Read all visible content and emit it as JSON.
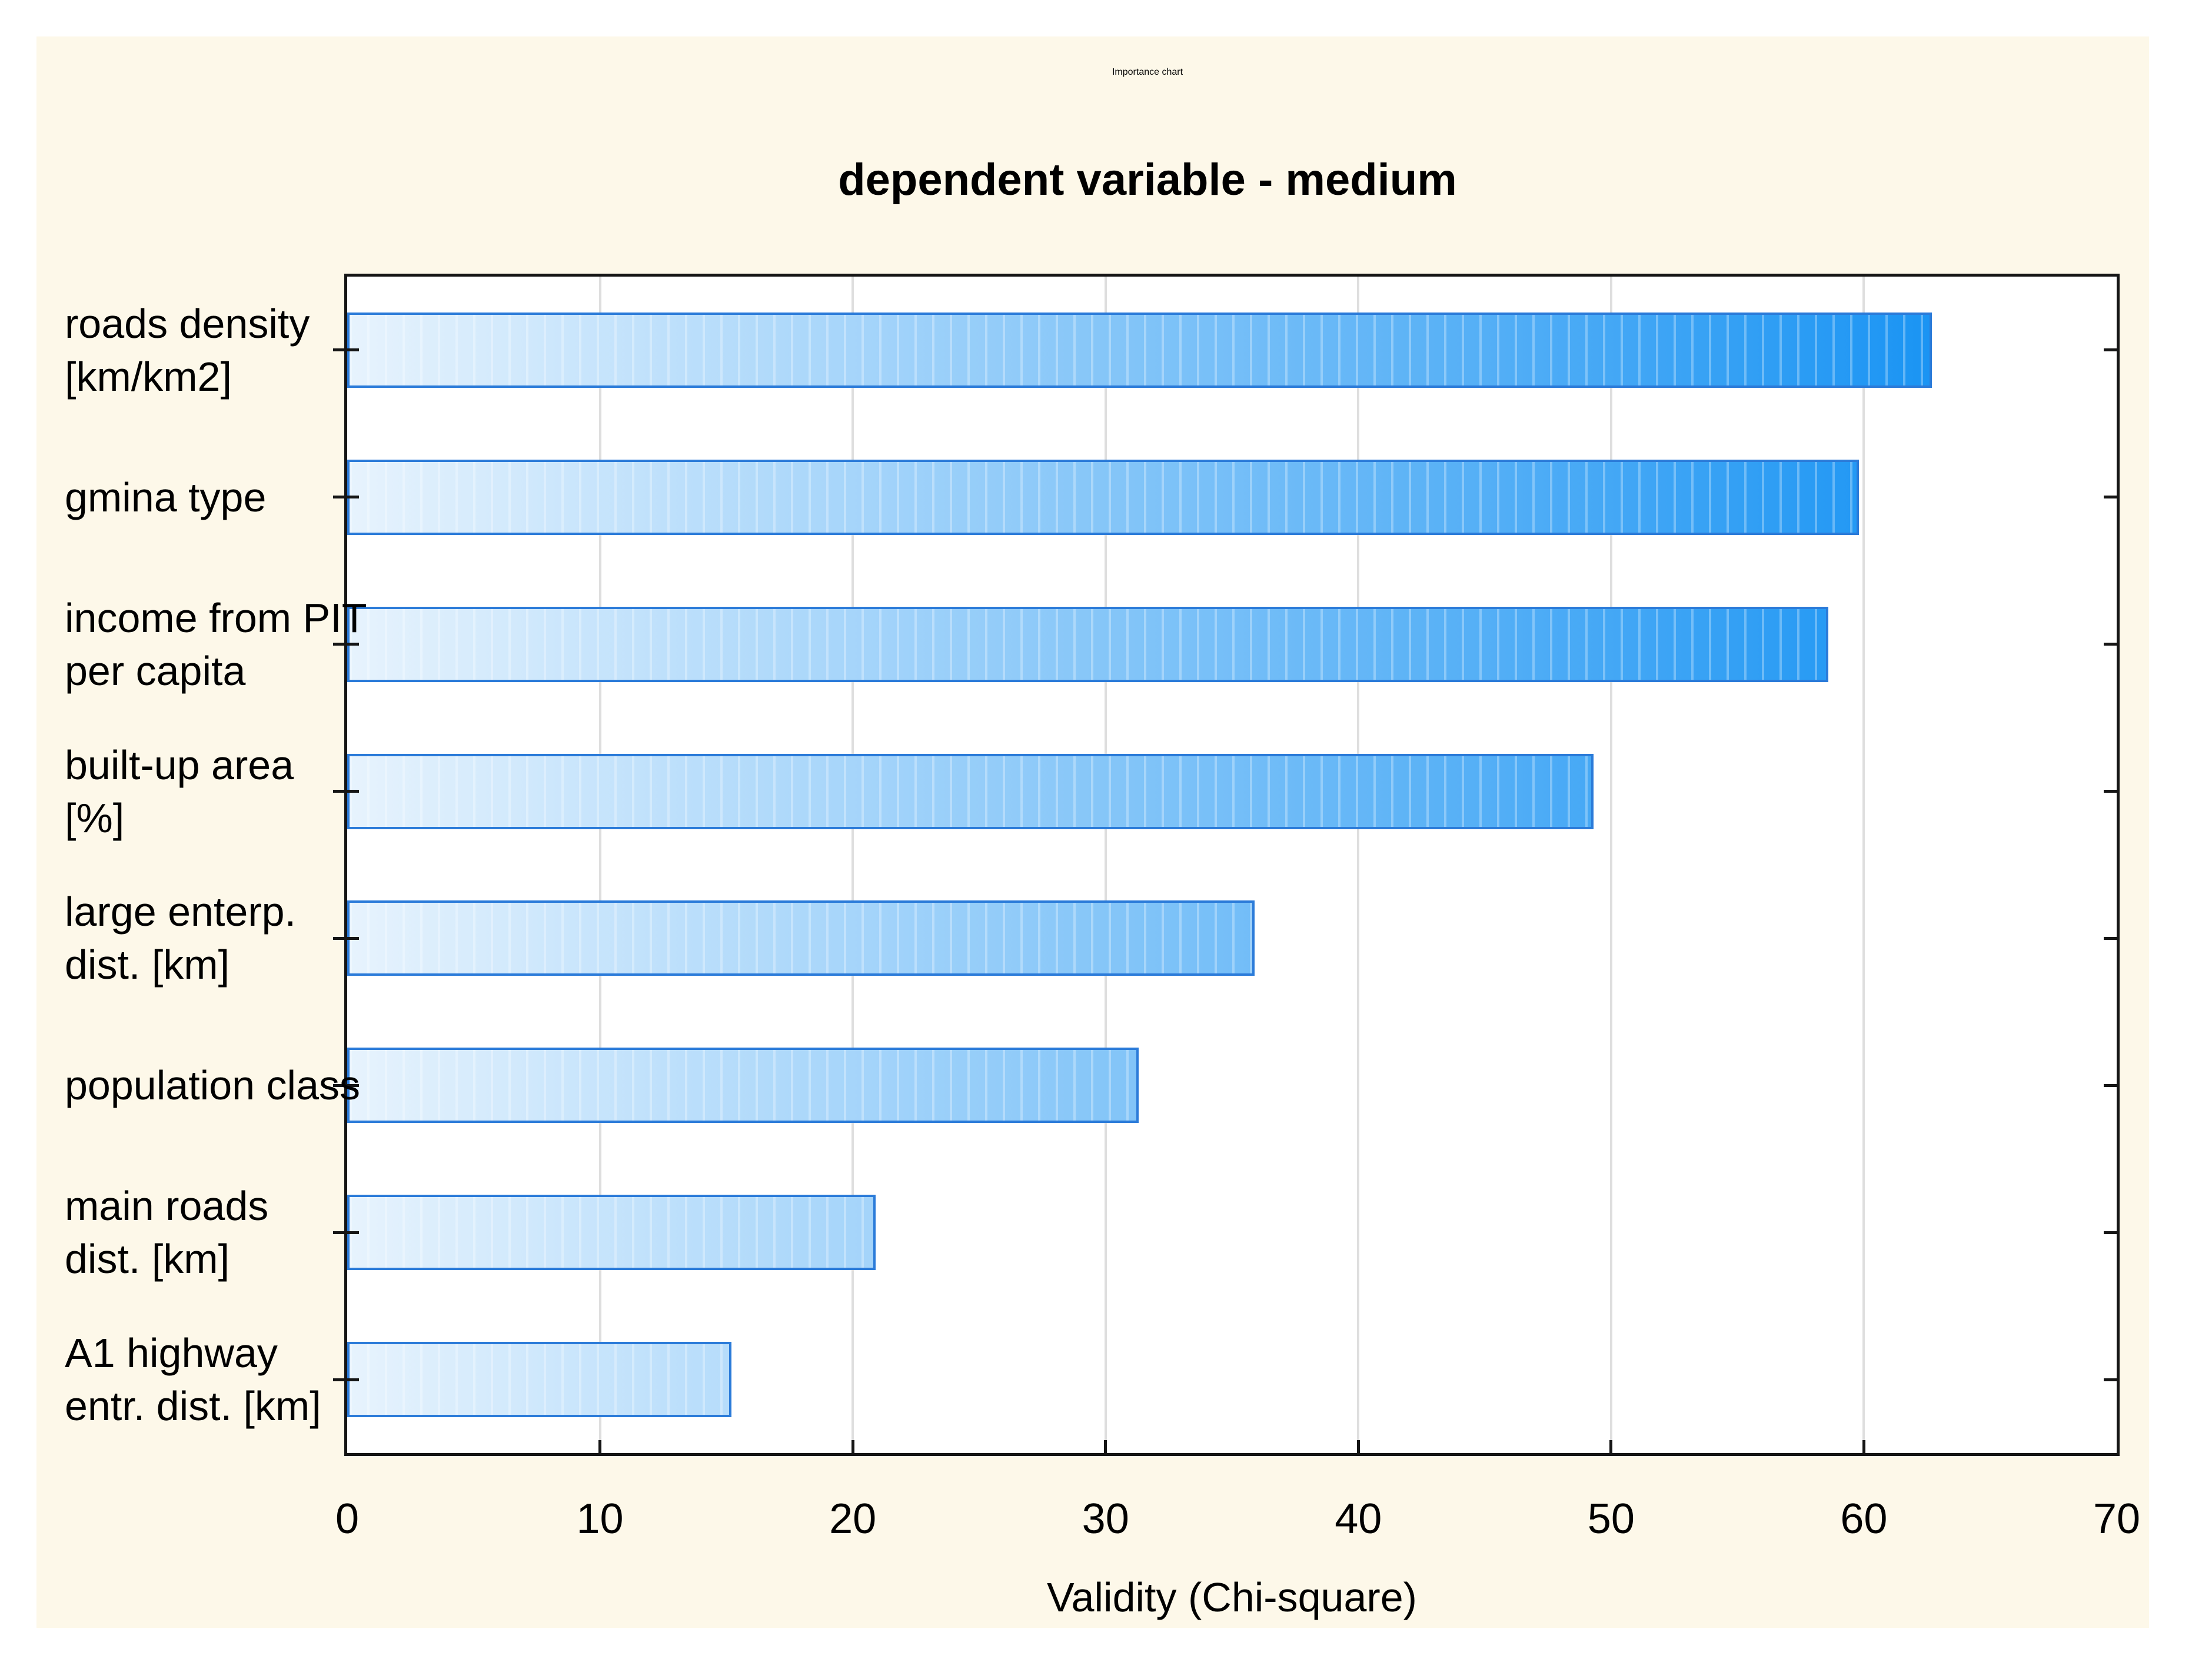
{
  "header": {
    "title": "Importance chart",
    "subtitle": "dependent variable - medium"
  },
  "chart_data": {
    "type": "bar",
    "orientation": "horizontal",
    "title": "Importance chart",
    "subtitle": "dependent variable - medium",
    "categories": [
      "roads density\n[km/km2]",
      "gmina type",
      "income from PIT\nper capita",
      "built-up area\n[%]",
      "large enterp.\ndist. [km]",
      "population class",
      "main roads\ndist. [km]",
      "A1 highway\nentr. dist. [km]"
    ],
    "values": [
      62.7,
      59.8,
      58.6,
      49.3,
      35.9,
      31.3,
      20.9,
      15.2
    ],
    "xlabel": "Validity (Chi-square)",
    "ylabel": "",
    "xlim": [
      0,
      70
    ],
    "xticks": [
      0,
      10,
      20,
      30,
      40,
      50,
      60,
      70
    ],
    "grid": "vertical-only",
    "legend": "none",
    "colors": {
      "panel_background": "#fdf8e9",
      "page_background": "#ffffff",
      "plot_background": "#ffffff",
      "axis_frame": "#151515",
      "gridline": "#dedede",
      "bar_gradient_start": "#e7f3fd",
      "bar_gradient_end": "#0289f2",
      "bar_border": "#2b7bd9",
      "text": "#000000"
    }
  }
}
